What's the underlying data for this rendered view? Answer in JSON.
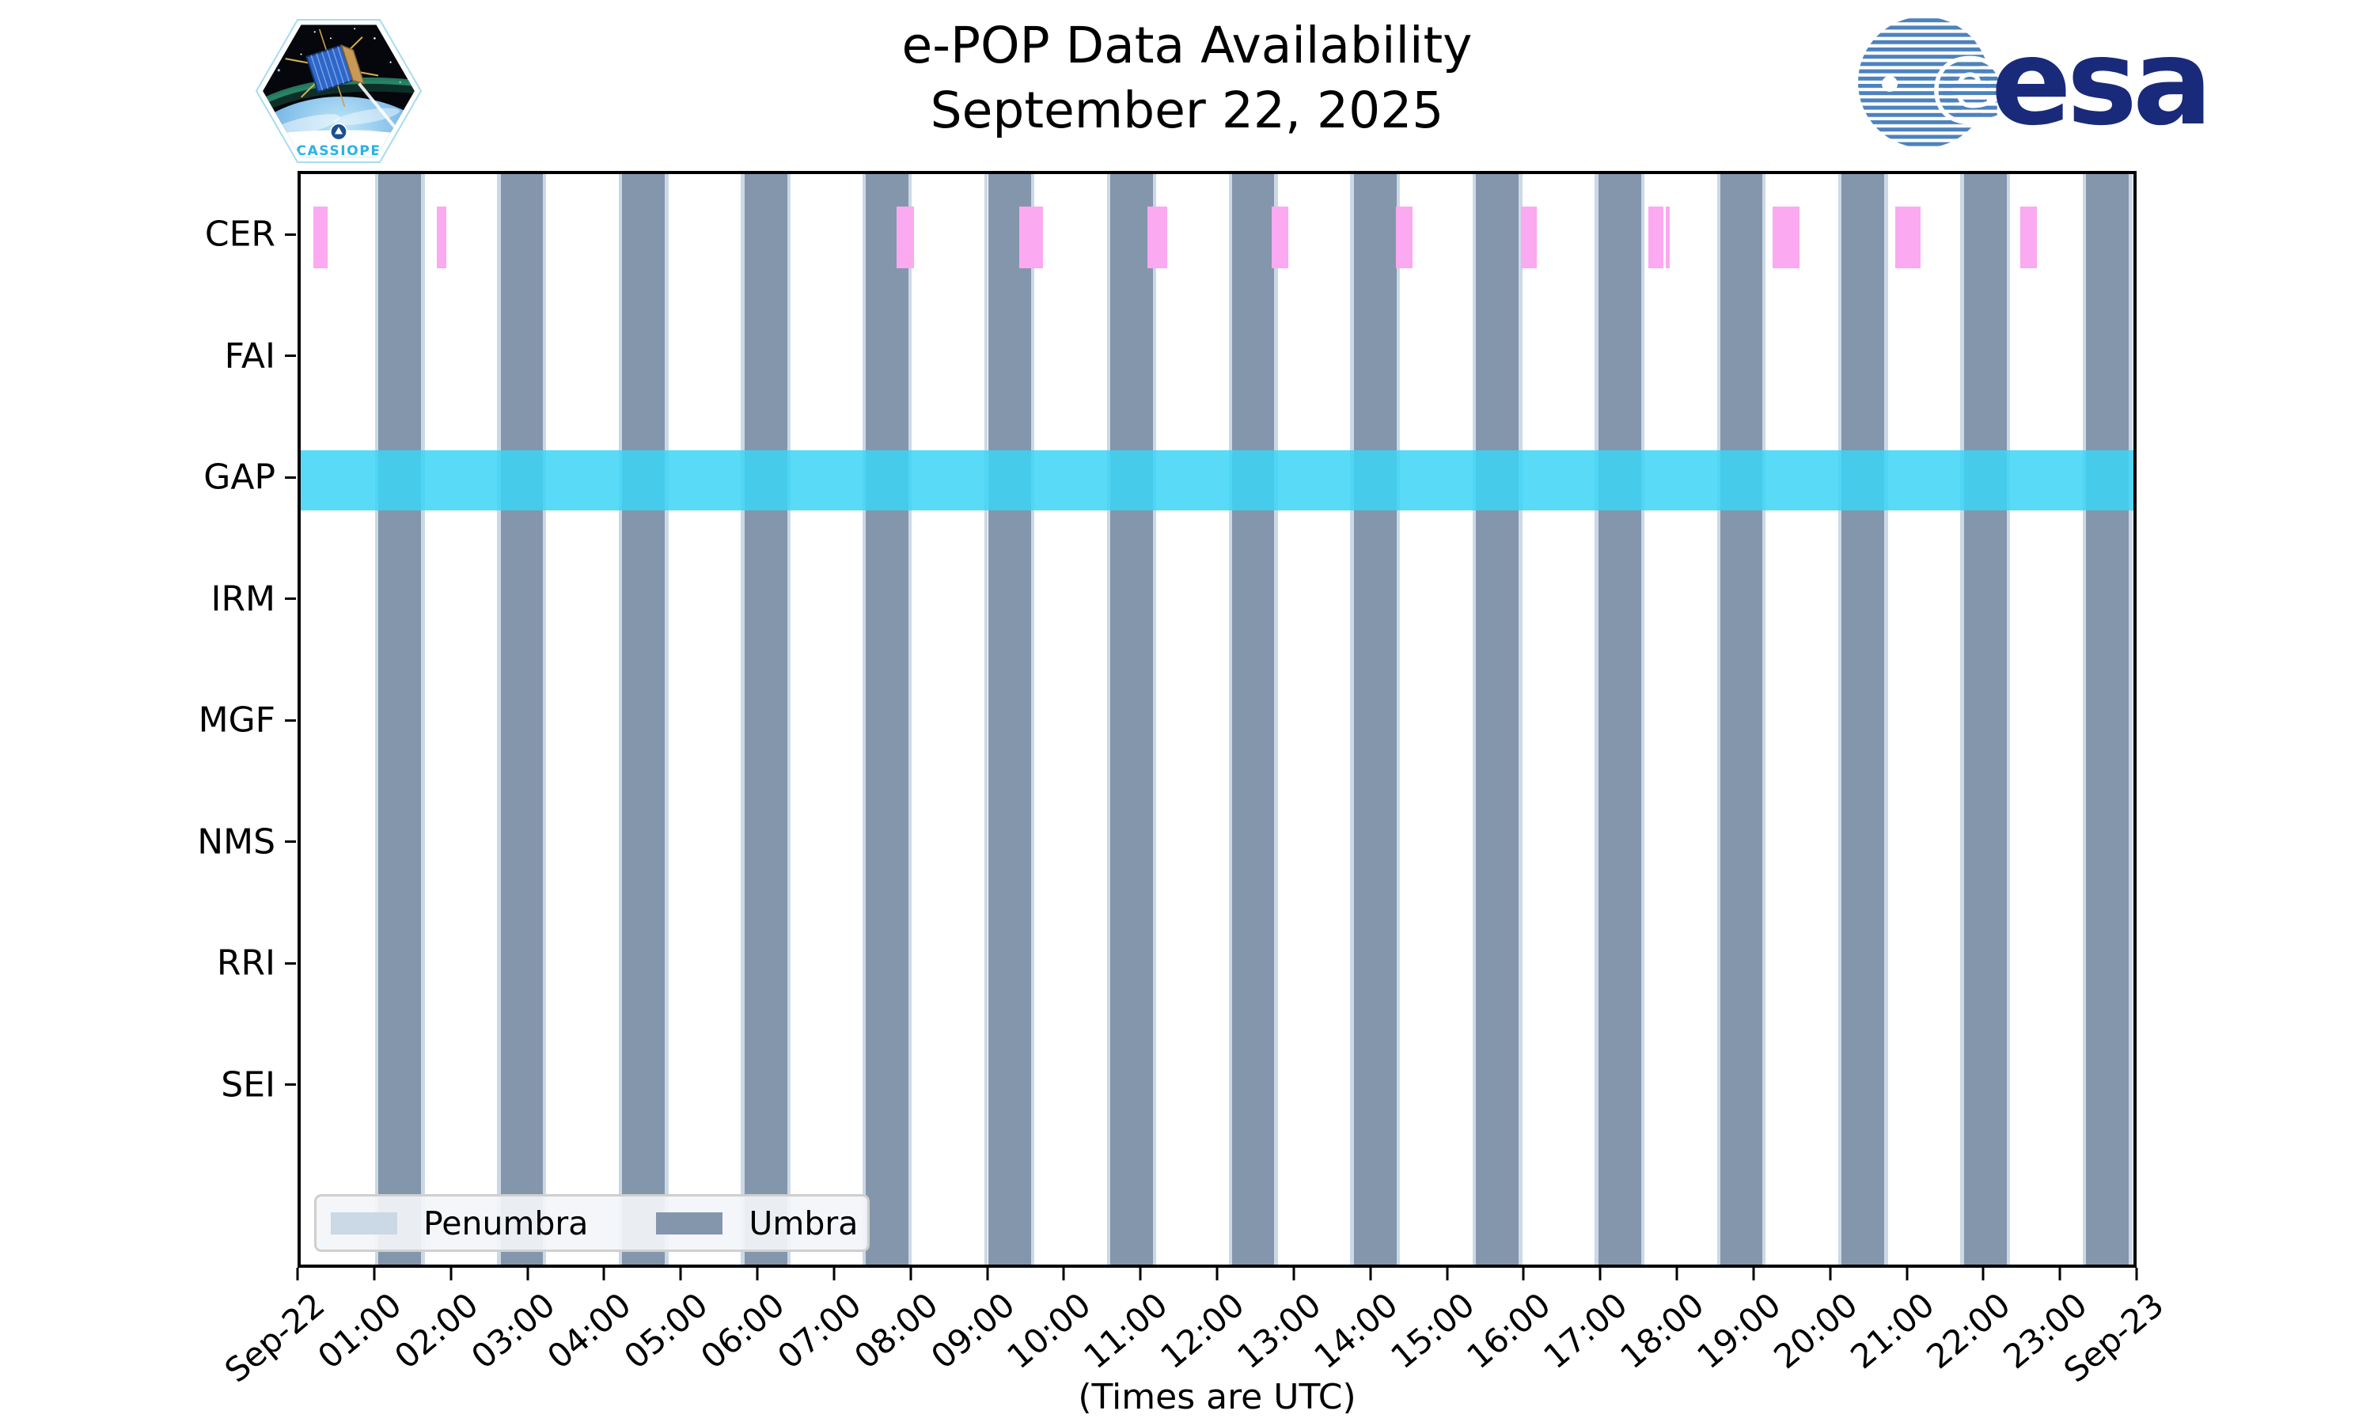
{
  "header": {
    "title": "e-POP Data Availability",
    "subtitle": "September 22, 2025"
  },
  "branding": {
    "cassiope_patch_text": "CASSIOPE",
    "esa_logo_text": "esa"
  },
  "chart_data": {
    "type": "timeline",
    "title": "e-POP Data Availability",
    "subtitle": "September 22, 2025",
    "xlabel": "(Times are UTC)",
    "x_axis": {
      "range_hours": [
        0,
        24
      ],
      "tick_labels": [
        "Sep-22",
        "01:00",
        "02:00",
        "03:00",
        "04:00",
        "05:00",
        "06:00",
        "07:00",
        "08:00",
        "09:00",
        "10:00",
        "11:00",
        "12:00",
        "13:00",
        "14:00",
        "15:00",
        "16:00",
        "17:00",
        "18:00",
        "19:00",
        "20:00",
        "21:00",
        "22:00",
        "23:00",
        "Sep-23"
      ]
    },
    "rows": [
      "CER",
      "FAI",
      "GAP",
      "IRM",
      "MGF",
      "NMS",
      "RRI",
      "SEI"
    ],
    "umbra": {
      "color": "#8496AB",
      "intervals_hours": [
        [
          1.02,
          1.58
        ],
        [
          2.62,
          3.17
        ],
        [
          4.21,
          4.77
        ],
        [
          5.81,
          6.37
        ],
        [
          7.4,
          7.96
        ],
        [
          9.0,
          9.56
        ],
        [
          10.6,
          11.16
        ],
        [
          12.2,
          12.75
        ],
        [
          13.79,
          14.35
        ],
        [
          15.39,
          15.95
        ],
        [
          16.99,
          17.55
        ],
        [
          18.59,
          19.14
        ],
        [
          20.18,
          20.74
        ],
        [
          21.78,
          22.34
        ],
        [
          23.38,
          23.94
        ]
      ]
    },
    "penumbra": {
      "color": "#CBD8E6",
      "edge_width_hours": 0.045
    },
    "cer_availability": {
      "row": "CER",
      "color": "#FBA9F1",
      "intervals_hours": [
        [
          0.17,
          0.35
        ],
        [
          1.78,
          1.91
        ],
        [
          7.8,
          8.03
        ],
        [
          9.41,
          9.72
        ],
        [
          11.09,
          11.35
        ],
        [
          12.71,
          12.93
        ],
        [
          14.34,
          14.56
        ],
        [
          15.98,
          16.19
        ],
        [
          17.65,
          17.84
        ],
        [
          17.88,
          17.93
        ],
        [
          19.27,
          19.63
        ],
        [
          20.88,
          21.21
        ],
        [
          22.52,
          22.74
        ]
      ]
    },
    "gap_availability": {
      "row": "GAP",
      "color": "#3CD5F6",
      "alpha": 0.85,
      "intervals_hours": [
        [
          0,
          24
        ]
      ]
    },
    "legend": {
      "entries": [
        {
          "label": "Penumbra",
          "color": "#CBD8E6"
        },
        {
          "label": "Umbra",
          "color": "#8496AB"
        }
      ]
    }
  }
}
